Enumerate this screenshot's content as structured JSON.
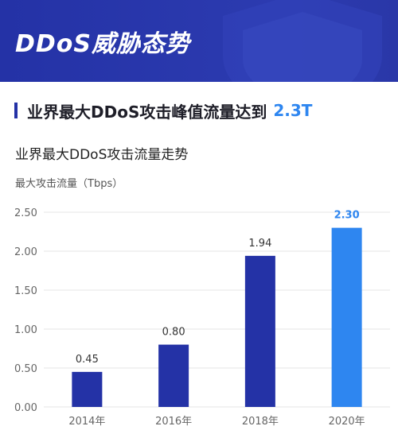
{
  "banner": {
    "title": "DDoS威胁态势"
  },
  "headline": {
    "text": "业界最大DDoS攻击峰值流量达到",
    "accent": "2.3T"
  },
  "colors": {
    "bar": "#2432a6",
    "highlight_bar": "#2e86f0",
    "grid": "#e6e6e6"
  },
  "chart_data": {
    "type": "bar",
    "title": "业界最大DDoS攻击流量走势",
    "ylabel": "最大攻击流量（Tbps）",
    "xlabel": "",
    "categories": [
      "2014年",
      "2016年",
      "2018年",
      "2020年"
    ],
    "values": [
      0.45,
      0.8,
      1.94,
      2.3
    ],
    "data_labels": [
      "0.45",
      "0.80",
      "1.94",
      "2.30"
    ],
    "highlight_index": 3,
    "ylim": [
      0,
      2.5
    ],
    "yticks": [
      "0.00",
      "0.50",
      "1.00",
      "1.50",
      "2.00",
      "2.50"
    ],
    "grid": true,
    "legend": "none"
  }
}
